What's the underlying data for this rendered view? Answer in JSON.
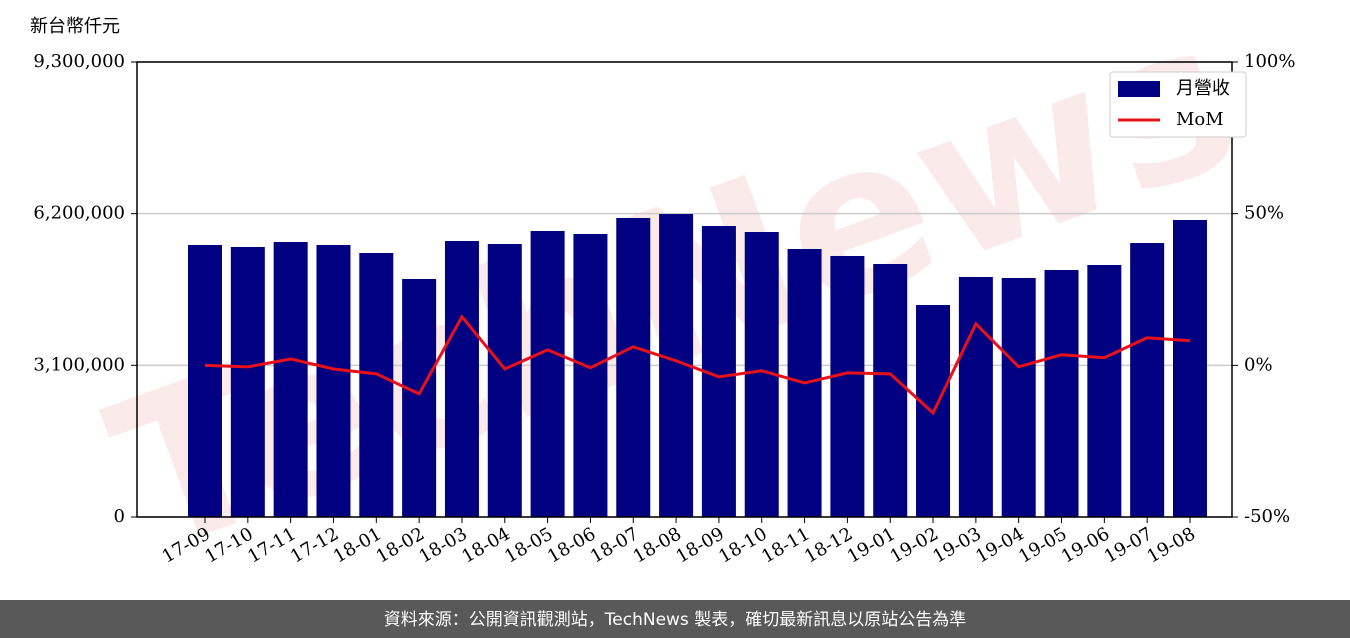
{
  "chart_data": {
    "type": "bar_line",
    "y_label": "新台幣仟元",
    "watermark": "TechNews",
    "footer": "資料來源：公開資訊觀測站，TechNews 製表，確切最新訊息以原站公告為準",
    "categories": [
      "17-09",
      "17-10",
      "17-11",
      "17-12",
      "18-01",
      "18-02",
      "18-03",
      "18-04",
      "18-05",
      "18-06",
      "18-07",
      "18-08",
      "18-09",
      "18-10",
      "18-11",
      "18-12",
      "19-01",
      "19-02",
      "19-03",
      "19-04",
      "19-05",
      "19-06",
      "19-07",
      "19-08"
    ],
    "series": [
      {
        "name": "月營收",
        "type": "bar",
        "color": "#000080",
        "values": [
          5560000,
          5519000,
          5621000,
          5560000,
          5396000,
          4865000,
          5641000,
          5580000,
          5846000,
          5785000,
          6112000,
          6193000,
          5948000,
          5825000,
          5478000,
          5335000,
          5171000,
          4333000,
          4906000,
          4885000,
          5049000,
          5151000,
          5600000,
          6071000
        ]
      },
      {
        "name": "MoM",
        "type": "line",
        "axis": "y2",
        "color": "#e8111a",
        "values": [
          0,
          -0.5,
          2.1,
          -1.2,
          -2.8,
          -9.4,
          16,
          -1.2,
          5.1,
          -0.8,
          6.1,
          1.5,
          -3.8,
          -1.8,
          -5.8,
          -2.5,
          -2.8,
          -15.7,
          13.7,
          -0.5,
          3.5,
          2.5,
          9.1,
          8.1
        ]
      }
    ],
    "ylim": [
      0,
      9300000
    ],
    "yticks": [
      0,
      {
        "value": 3100000,
        "label": "3,100,000"
      },
      {
        "value": 6200000,
        "label": "6,200,000"
      },
      {
        "value": 9300000,
        "label": "9,300,000"
      }
    ],
    "y2lim": [
      -50,
      100
    ],
    "y2ticks": [
      {
        "value": -50,
        "label": "-50%"
      },
      {
        "value": 0,
        "label": "0%"
      },
      {
        "value": 50,
        "label": "50%"
      },
      {
        "value": 100,
        "label": "100%"
      }
    ],
    "grid": true,
    "legend": "upper right"
  }
}
